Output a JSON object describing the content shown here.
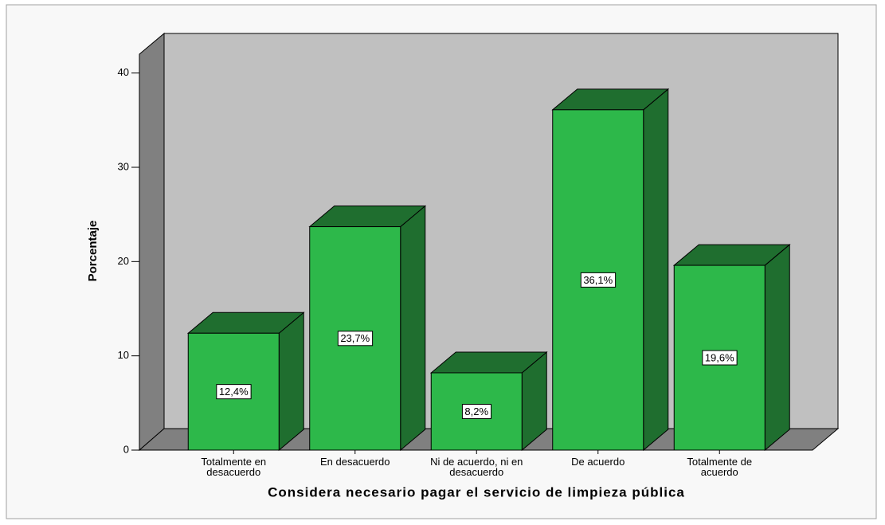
{
  "chart_data": {
    "type": "bar3d",
    "x_label": "Considera necesario pagar el servicio de limpieza pública",
    "y_label": "Porcentaje",
    "categories": [
      "Totalmente en desacuerdo",
      "En desacuerdo",
      "Ni de acuerdo, ni en desacuerdo",
      "De acuerdo",
      "Totalmente de acuerdo"
    ],
    "values": [
      12.4,
      23.7,
      8.2,
      36.1,
      19.6
    ],
    "value_labels": [
      "12,4%",
      "23,7%",
      "8,2%",
      "36,1%",
      "19,6%"
    ],
    "color": "#2db84a",
    "ylim": [
      0,
      42
    ],
    "yticks": [
      0,
      10,
      20,
      30,
      40
    ],
    "grid": false
  }
}
